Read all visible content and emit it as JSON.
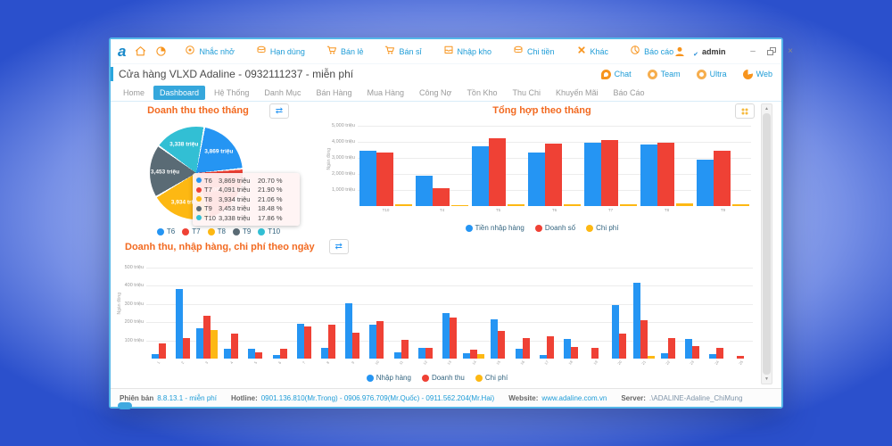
{
  "branding": {
    "logo_letter": "a"
  },
  "window": {
    "title": "Cửa hàng VLXD Adaline - 0932111237 - miễn phí",
    "user": "admin",
    "controls": {
      "minimize": "–",
      "close": "×"
    }
  },
  "toolbar": {
    "items": [
      {
        "label": "Nhắc nhở",
        "icon": "reminder-icon"
      },
      {
        "label": "Hạn dùng",
        "icon": "expiry-icon"
      },
      {
        "label": "Bán lẻ",
        "icon": "retail-cart-icon"
      },
      {
        "label": "Bán sỉ",
        "icon": "wholesale-cart-icon"
      },
      {
        "label": "Nhập kho",
        "icon": "inbox-icon"
      },
      {
        "label": "Chi tiền",
        "icon": "money-icon"
      },
      {
        "label": "Khác",
        "icon": "burst-icon"
      },
      {
        "label": "Báo cáo",
        "icon": "report-icon"
      }
    ]
  },
  "quick_links": [
    {
      "label": "Chat",
      "icon": "chat-icon"
    },
    {
      "label": "Team",
      "icon": "team-icon"
    },
    {
      "label": "Ultra",
      "icon": "ultra-icon"
    },
    {
      "label": "Web",
      "icon": "web-icon"
    }
  ],
  "nav": {
    "tabs": [
      "Home",
      "Dashboard",
      "Hệ Thống",
      "Danh Mục",
      "Bán Hàng",
      "Mua Hàng",
      "Công Nợ",
      "Tồn Kho",
      "Thu Chi",
      "Khuyến Mãi",
      "Báo Cáo"
    ],
    "active_tab": "Dashboard"
  },
  "chart_data": [
    {
      "type": "pie",
      "title": "Doanh thu theo tháng",
      "labels": [
        "T6",
        "T7",
        "T8",
        "T9",
        "T10"
      ],
      "values": [
        3869,
        4091,
        3934,
        3453,
        3338
      ],
      "value_labels": [
        "3,869 triệu",
        "4,091 triệu",
        "3,934 triệu",
        "3,453 triệu",
        "3,338 triệu"
      ],
      "percents": [
        20.7,
        21.9,
        21.06,
        18.48,
        17.86
      ],
      "percent_labels": [
        "20.70 %",
        "21.90 %",
        "21.06 %",
        "18.48 %",
        "17.86 %"
      ],
      "colors": [
        "#2595f3",
        "#ef4135",
        "#fdb813",
        "#5a6b75",
        "#32bfd4"
      ],
      "start_angle_deg": 9,
      "legend_position": "bottom"
    },
    {
      "type": "bar",
      "title": "Tổng hợp theo tháng",
      "categories": [
        "T10",
        "T4",
        "T5",
        "T6",
        "T7",
        "T8",
        "T9"
      ],
      "series": [
        {
          "name": "Tiền nhập hàng",
          "color": "#2595f3",
          "values": [
            3400,
            1900,
            3700,
            3300,
            3950,
            3800,
            2900
          ]
        },
        {
          "name": "Doanh số",
          "color": "#ef4135",
          "values": [
            3338,
            1100,
            4200,
            3869,
            4091,
            3934,
            3453
          ]
        },
        {
          "name": "Chi phí",
          "color": "#fdb813",
          "values": [
            110,
            60,
            130,
            110,
            120,
            190,
            120
          ]
        }
      ],
      "ylabel": "Ngàn đồng",
      "yticks": [
        1000,
        2000,
        3000,
        4000,
        5000
      ],
      "ytick_labels": [
        "1,000 triệu",
        "2,000 triệu",
        "3,000 triệu",
        "4,000 triệu",
        "5,000 triệu"
      ],
      "ymax": 5250,
      "grid": true,
      "legend_position": "bottom"
    },
    {
      "type": "bar",
      "title": "Doanh thu, nhập hàng, chi phí theo ngày",
      "categories": [
        "1",
        "2",
        "3",
        "4",
        "5",
        "6",
        "7",
        "8",
        "9",
        "10",
        "11",
        "12",
        "13",
        "14",
        "15",
        "16",
        "17",
        "18",
        "19",
        "20",
        "21",
        "22",
        "23",
        "24",
        "25"
      ],
      "series": [
        {
          "name": "Nhập hàng",
          "color": "#2595f3",
          "values": [
            25,
            380,
            165,
            55,
            55,
            20,
            190,
            60,
            305,
            185,
            35,
            60,
            250,
            30,
            215,
            55,
            20,
            110,
            0,
            295,
            415,
            30,
            110,
            25,
            0
          ]
        },
        {
          "name": "Doanh thu",
          "color": "#ef4135",
          "values": [
            85,
            115,
            235,
            135,
            35,
            55,
            175,
            185,
            140,
            205,
            105,
            60,
            225,
            50,
            150,
            115,
            120,
            65,
            60,
            135,
            210,
            115,
            70,
            60,
            15
          ]
        },
        {
          "name": "Chi phí",
          "color": "#fdb813",
          "values": [
            0,
            0,
            155,
            0,
            0,
            0,
            0,
            0,
            0,
            0,
            0,
            0,
            0,
            25,
            0,
            0,
            0,
            0,
            0,
            0,
            15,
            0,
            0,
            0,
            0
          ]
        }
      ],
      "ylabel": "Ngàn đồng",
      "yticks": [
        100,
        200,
        300,
        400,
        500
      ],
      "ytick_labels": [
        "100 triệu",
        "200 triệu",
        "300 triệu",
        "400 triệu",
        "500 triệu"
      ],
      "ymax": 548,
      "grid": true,
      "legend_position": "bottom"
    }
  ],
  "footer": {
    "version_label": "Phiên bản",
    "version": "8.8.13.1 - miễn phí",
    "hotline_label": "Hotline:",
    "hotline": "0901.136.810(Mr.Trong) - 0906.976.709(Mr.Quốc) - 0911.562.204(Mr.Hai)",
    "website_label": "Website:",
    "website": "www.adaline.com.vn",
    "server_label": "Server:",
    "server": ".\\ADALINE-Adaline_ChiMung"
  },
  "colors": {
    "accent_orange": "#f7941d",
    "link_blue": "#1e9cd7",
    "active_tab": "#35a7dc",
    "panel_title_orange": "#f26a21",
    "bar_blue": "#2595f3",
    "bar_red": "#ef4135",
    "bar_yellow": "#fdb813",
    "pie_gray": "#5a6b75",
    "pie_teal": "#32bfd4"
  }
}
